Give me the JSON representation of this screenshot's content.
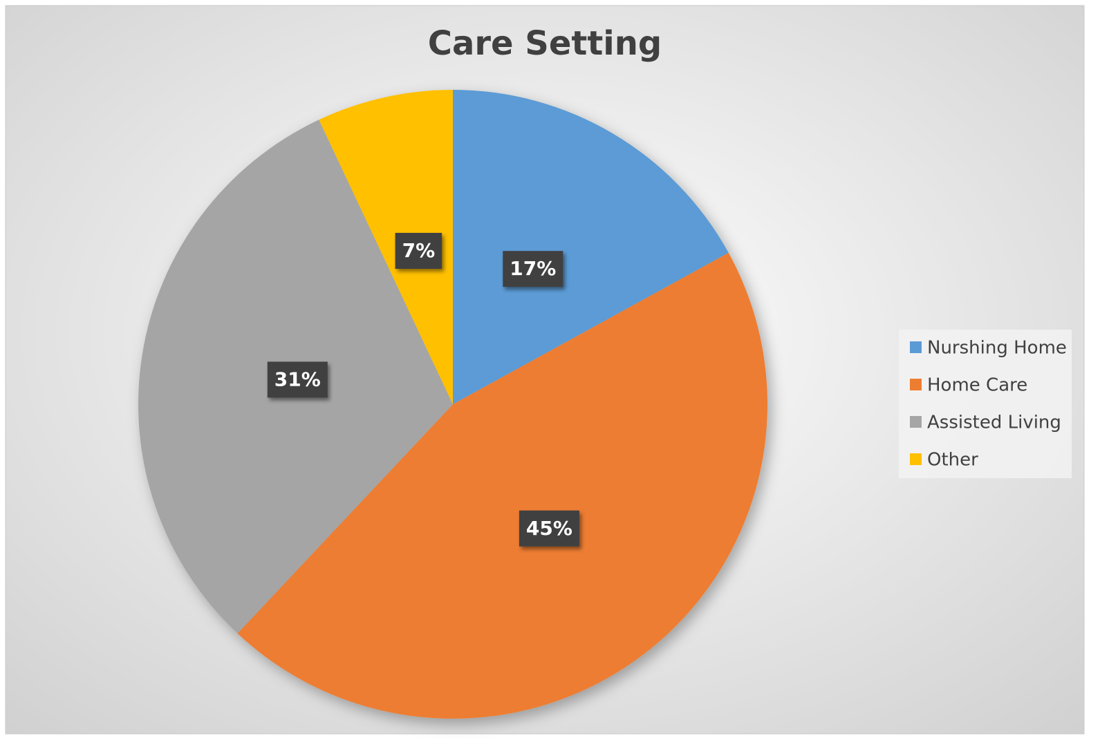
{
  "chart_data": {
    "type": "pie",
    "title": "Care Setting",
    "categories": [
      "Nurshing Home",
      "Home Care",
      "Assisted Living",
      "Other"
    ],
    "values": [
      17,
      45,
      31,
      7
    ],
    "value_labels": [
      "17%",
      "45%",
      "31%",
      "7%"
    ],
    "colors": [
      "#5b9bd5",
      "#ed7d31",
      "#a5a5a5",
      "#ffc000"
    ],
    "legend": "right"
  }
}
